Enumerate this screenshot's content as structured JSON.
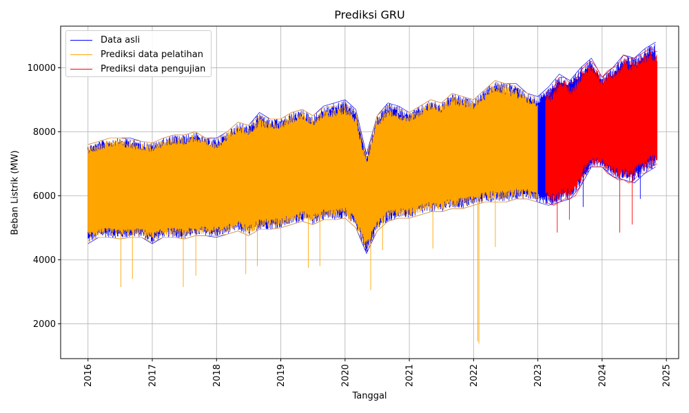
{
  "chart_data": {
    "type": "line",
    "title": "Prediksi GRU",
    "xlabel": "Tanggal",
    "ylabel": "Beban Listrik (MW)",
    "grid": true,
    "legend_position": "top-left",
    "xlim": [
      "2015-07-28",
      "2025-03-10"
    ],
    "ylim": [
      910,
      11300
    ],
    "x_ticks": [
      "2016",
      "2017",
      "2018",
      "2019",
      "2020",
      "2021",
      "2022",
      "2023",
      "2024",
      "2025"
    ],
    "y_ticks": [
      2000,
      4000,
      6000,
      8000,
      10000
    ],
    "colors": {
      "actual": "#0000ff",
      "train": "#ffa500",
      "test": "#ff0000"
    },
    "series": [
      {
        "name": "Data asli",
        "color": "#0000ff",
        "x": [
          "2016-01-01",
          "2016-03-01",
          "2016-05-01",
          "2016-07-01",
          "2016-09-01",
          "2016-11-01",
          "2017-01-01",
          "2017-03-01",
          "2017-05-01",
          "2017-07-01",
          "2017-09-01",
          "2017-11-01",
          "2018-01-01",
          "2018-03-01",
          "2018-05-01",
          "2018-07-01",
          "2018-09-01",
          "2018-11-01",
          "2019-01-01",
          "2019-03-01",
          "2019-05-01",
          "2019-07-01",
          "2019-09-01",
          "2019-11-01",
          "2020-01-01",
          "2020-03-01",
          "2020-05-01",
          "2020-07-01",
          "2020-09-01",
          "2020-11-01",
          "2021-01-01",
          "2021-03-01",
          "2021-05-01",
          "2021-07-01",
          "2021-09-01",
          "2021-11-01",
          "2022-01-01",
          "2022-03-01",
          "2022-05-01",
          "2022-07-01",
          "2022-09-01",
          "2022-11-01",
          "2023-01-01",
          "2023-03-01",
          "2023-05-01",
          "2023-07-01",
          "2023-09-01",
          "2023-11-01",
          "2024-01-01",
          "2024-03-01",
          "2024-05-01",
          "2024-07-01",
          "2024-09-01",
          "2024-11-01"
        ],
        "min": [
          4500,
          4700,
          4700,
          4650,
          4700,
          4700,
          4500,
          4700,
          4700,
          4650,
          4750,
          4750,
          4700,
          4800,
          4900,
          4750,
          4950,
          4950,
          5000,
          5100,
          5200,
          5100,
          5250,
          5250,
          5300,
          5000,
          4200,
          4900,
          5200,
          5300,
          5300,
          5400,
          5500,
          5500,
          5600,
          5600,
          5700,
          5800,
          5800,
          5800,
          5900,
          5900,
          5800,
          5700,
          5800,
          5900,
          6300,
          6900,
          6900,
          6600,
          6500,
          6400,
          6700,
          6900
        ],
        "max": [
          7600,
          7700,
          7800,
          7800,
          7800,
          7700,
          7650,
          7800,
          7900,
          7900,
          8000,
          7800,
          7800,
          8000,
          8300,
          8200,
          8600,
          8400,
          8400,
          8600,
          8700,
          8500,
          8800,
          8900,
          9000,
          8700,
          7300,
          8500,
          8900,
          8800,
          8600,
          8800,
          9000,
          8900,
          9200,
          9100,
          9000,
          9300,
          9600,
          9500,
          9500,
          9200,
          9100,
          9400,
          9800,
          9600,
          10000,
          10300,
          9700,
          10000,
          10400,
          10300,
          10600,
          10800
        ]
      },
      {
        "name": "Prediksi data pelatihan",
        "color": "#ffa500",
        "x": [
          "2016-01-01",
          "2016-03-01",
          "2016-05-01",
          "2016-07-01",
          "2016-09-01",
          "2016-11-01",
          "2017-01-01",
          "2017-03-01",
          "2017-05-01",
          "2017-07-01",
          "2017-09-01",
          "2017-11-01",
          "2018-01-01",
          "2018-03-01",
          "2018-05-01",
          "2018-07-01",
          "2018-09-01",
          "2018-11-01",
          "2019-01-01",
          "2019-03-01",
          "2019-05-01",
          "2019-07-01",
          "2019-09-01",
          "2019-11-01",
          "2020-01-01",
          "2020-03-01",
          "2020-05-01",
          "2020-07-01",
          "2020-09-01",
          "2020-11-01",
          "2021-01-01",
          "2021-03-01",
          "2021-05-01",
          "2021-07-01",
          "2021-09-01",
          "2021-11-01",
          "2022-01-01",
          "2022-03-01",
          "2022-05-01",
          "2022-07-01",
          "2022-09-01",
          "2022-11-01",
          "2023-01-01"
        ],
        "min": [
          4600,
          4700,
          4700,
          4650,
          4700,
          4700,
          4550,
          4700,
          4700,
          4650,
          4750,
          4750,
          4750,
          4800,
          4900,
          4750,
          4950,
          4950,
          5000,
          5100,
          5200,
          5100,
          5250,
          5250,
          5300,
          5000,
          4300,
          4900,
          5200,
          5300,
          5300,
          5400,
          5500,
          5500,
          5600,
          5600,
          5700,
          5800,
          5800,
          5800,
          5900,
          5900,
          5800
        ],
        "max": [
          7600,
          7700,
          7800,
          7800,
          7750,
          7700,
          7650,
          7800,
          7900,
          7900,
          8000,
          7800,
          7750,
          8000,
          8300,
          8200,
          8500,
          8400,
          8400,
          8600,
          8700,
          8500,
          8750,
          8800,
          8900,
          8600,
          7200,
          8500,
          8800,
          8700,
          8600,
          8800,
          9000,
          8900,
          9200,
          9100,
          9000,
          9300,
          9600,
          9500,
          9400,
          9200,
          9000
        ]
      },
      {
        "name": "Prediksi data pengujian",
        "color": "#ff0000",
        "x": [
          "2023-02-15",
          "2023-04-01",
          "2023-05-01",
          "2023-06-01",
          "2023-07-01",
          "2023-08-01",
          "2023-09-01",
          "2023-10-01",
          "2023-11-01",
          "2023-12-01",
          "2024-01-01",
          "2024-02-01",
          "2024-03-01",
          "2024-04-01",
          "2024-05-01",
          "2024-06-01",
          "2024-07-01",
          "2024-08-01",
          "2024-09-01",
          "2024-10-01",
          "2024-11-10"
        ],
        "min": [
          5800,
          5700,
          5800,
          5900,
          5900,
          6000,
          6300,
          6800,
          6900,
          6900,
          6900,
          6700,
          6600,
          6500,
          6500,
          6400,
          6500,
          6700,
          6700,
          6900,
          7000
        ],
        "max": [
          9200,
          9400,
          9700,
          9700,
          9500,
          9600,
          9900,
          10100,
          10200,
          10000,
          9700,
          9900,
          10000,
          10100,
          10400,
          10300,
          10300,
          10400,
          10500,
          10600,
          10500
        ]
      }
    ],
    "spikes": [
      {
        "series": "Prediksi data pelatihan",
        "date": "2016-07-05",
        "value": 3150
      },
      {
        "series": "Prediksi data pelatihan",
        "date": "2016-09-10",
        "value": 3400
      },
      {
        "series": "Prediksi data pelatihan",
        "date": "2017-06-25",
        "value": 3150
      },
      {
        "series": "Prediksi data pelatihan",
        "date": "2017-09-05",
        "value": 3500
      },
      {
        "series": "Prediksi data pelatihan",
        "date": "2018-06-15",
        "value": 3550
      },
      {
        "series": "Prediksi data pelatihan",
        "date": "2018-08-20",
        "value": 3800
      },
      {
        "series": "Prediksi data pelatihan",
        "date": "2019-06-05",
        "value": 3750
      },
      {
        "series": "Prediksi data pelatihan",
        "date": "2019-08-10",
        "value": 3800
      },
      {
        "series": "Prediksi data pelatihan",
        "date": "2020-05-25",
        "value": 3050
      },
      {
        "series": "Prediksi data pelatihan",
        "date": "2020-08-01",
        "value": 4300
      },
      {
        "series": "Prediksi data pelatihan",
        "date": "2021-05-13",
        "value": 4350
      },
      {
        "series": "Prediksi data pelatihan",
        "date": "2022-01-25",
        "value": 1450
      },
      {
        "series": "Prediksi data pelatihan",
        "date": "2022-02-01",
        "value": 1380
      },
      {
        "series": "Prediksi data pelatihan",
        "date": "2022-05-03",
        "value": 4400
      },
      {
        "series": "Data asli",
        "date": "2023-09-15",
        "value": 5650
      },
      {
        "series": "Prediksi data pengujian",
        "date": "2023-04-20",
        "value": 4850
      },
      {
        "series": "Prediksi data pengujian",
        "date": "2023-06-28",
        "value": 5250
      },
      {
        "series": "Prediksi data pengujian",
        "date": "2024-04-10",
        "value": 4850
      },
      {
        "series": "Prediksi data pengujian",
        "date": "2024-06-20",
        "value": 5100
      },
      {
        "series": "Data asli",
        "date": "2024-08-05",
        "value": 5900
      }
    ]
  }
}
